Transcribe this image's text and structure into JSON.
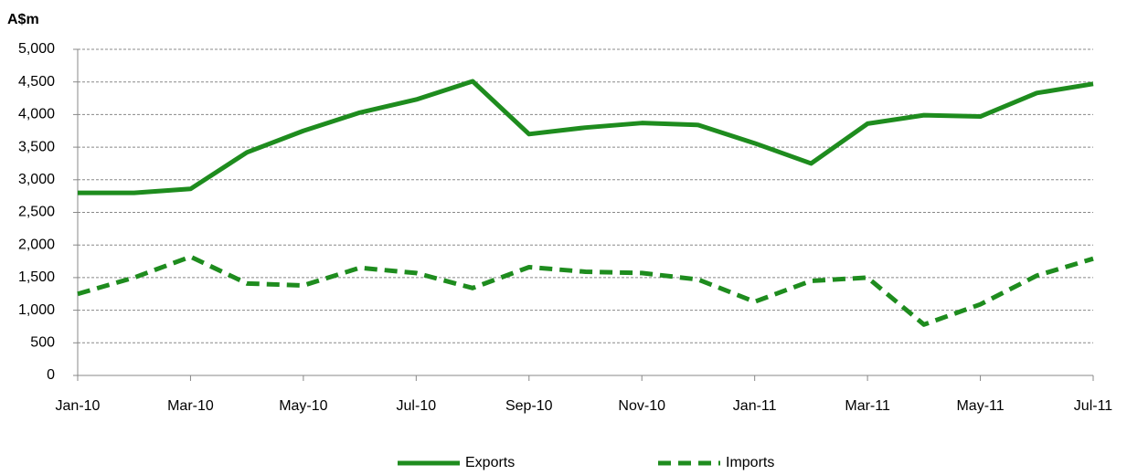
{
  "chart_data": {
    "type": "line",
    "y_label": "A$m",
    "categories": [
      "Jan-10",
      null,
      "Mar-10",
      null,
      "May-10",
      null,
      "Jul-10",
      null,
      "Sep-10",
      null,
      "Nov-10",
      null,
      "Jan-11",
      null,
      "Mar-11",
      null,
      "May-11",
      null,
      "Jul-11"
    ],
    "series": [
      {
        "name": "Exports",
        "color": "#1e8c1e",
        "dash": false,
        "values": [
          2800,
          2800,
          2860,
          3420,
          3750,
          4030,
          4230,
          4510,
          3700,
          3800,
          3870,
          3840,
          3560,
          3250,
          3860,
          3990,
          3970,
          4330,
          4470
        ]
      },
      {
        "name": "Imports",
        "color": "#1e8c1e",
        "dash": true,
        "values": [
          1250,
          1500,
          1820,
          1410,
          1380,
          1650,
          1570,
          1340,
          1660,
          1590,
          1570,
          1470,
          1130,
          1450,
          1500,
          780,
          1090,
          1530,
          1790
        ]
      }
    ],
    "ylim": [
      0,
      5000
    ],
    "yticks": [
      0,
      500,
      {
        "value": 1000,
        "label": "1,000"
      },
      {
        "value": 1500,
        "label": "1,500"
      },
      {
        "value": 2000,
        "label": "2,000"
      },
      {
        "value": 2500,
        "label": "2,500"
      },
      {
        "value": 3000,
        "label": "3,000"
      },
      {
        "value": 3500,
        "label": "3,500"
      },
      {
        "value": 4000,
        "label": "4,000"
      },
      {
        "value": 4500,
        "label": "4,500"
      },
      {
        "value": 5000,
        "label": "5,000"
      }
    ],
    "grid": true,
    "legend": "bottom"
  }
}
